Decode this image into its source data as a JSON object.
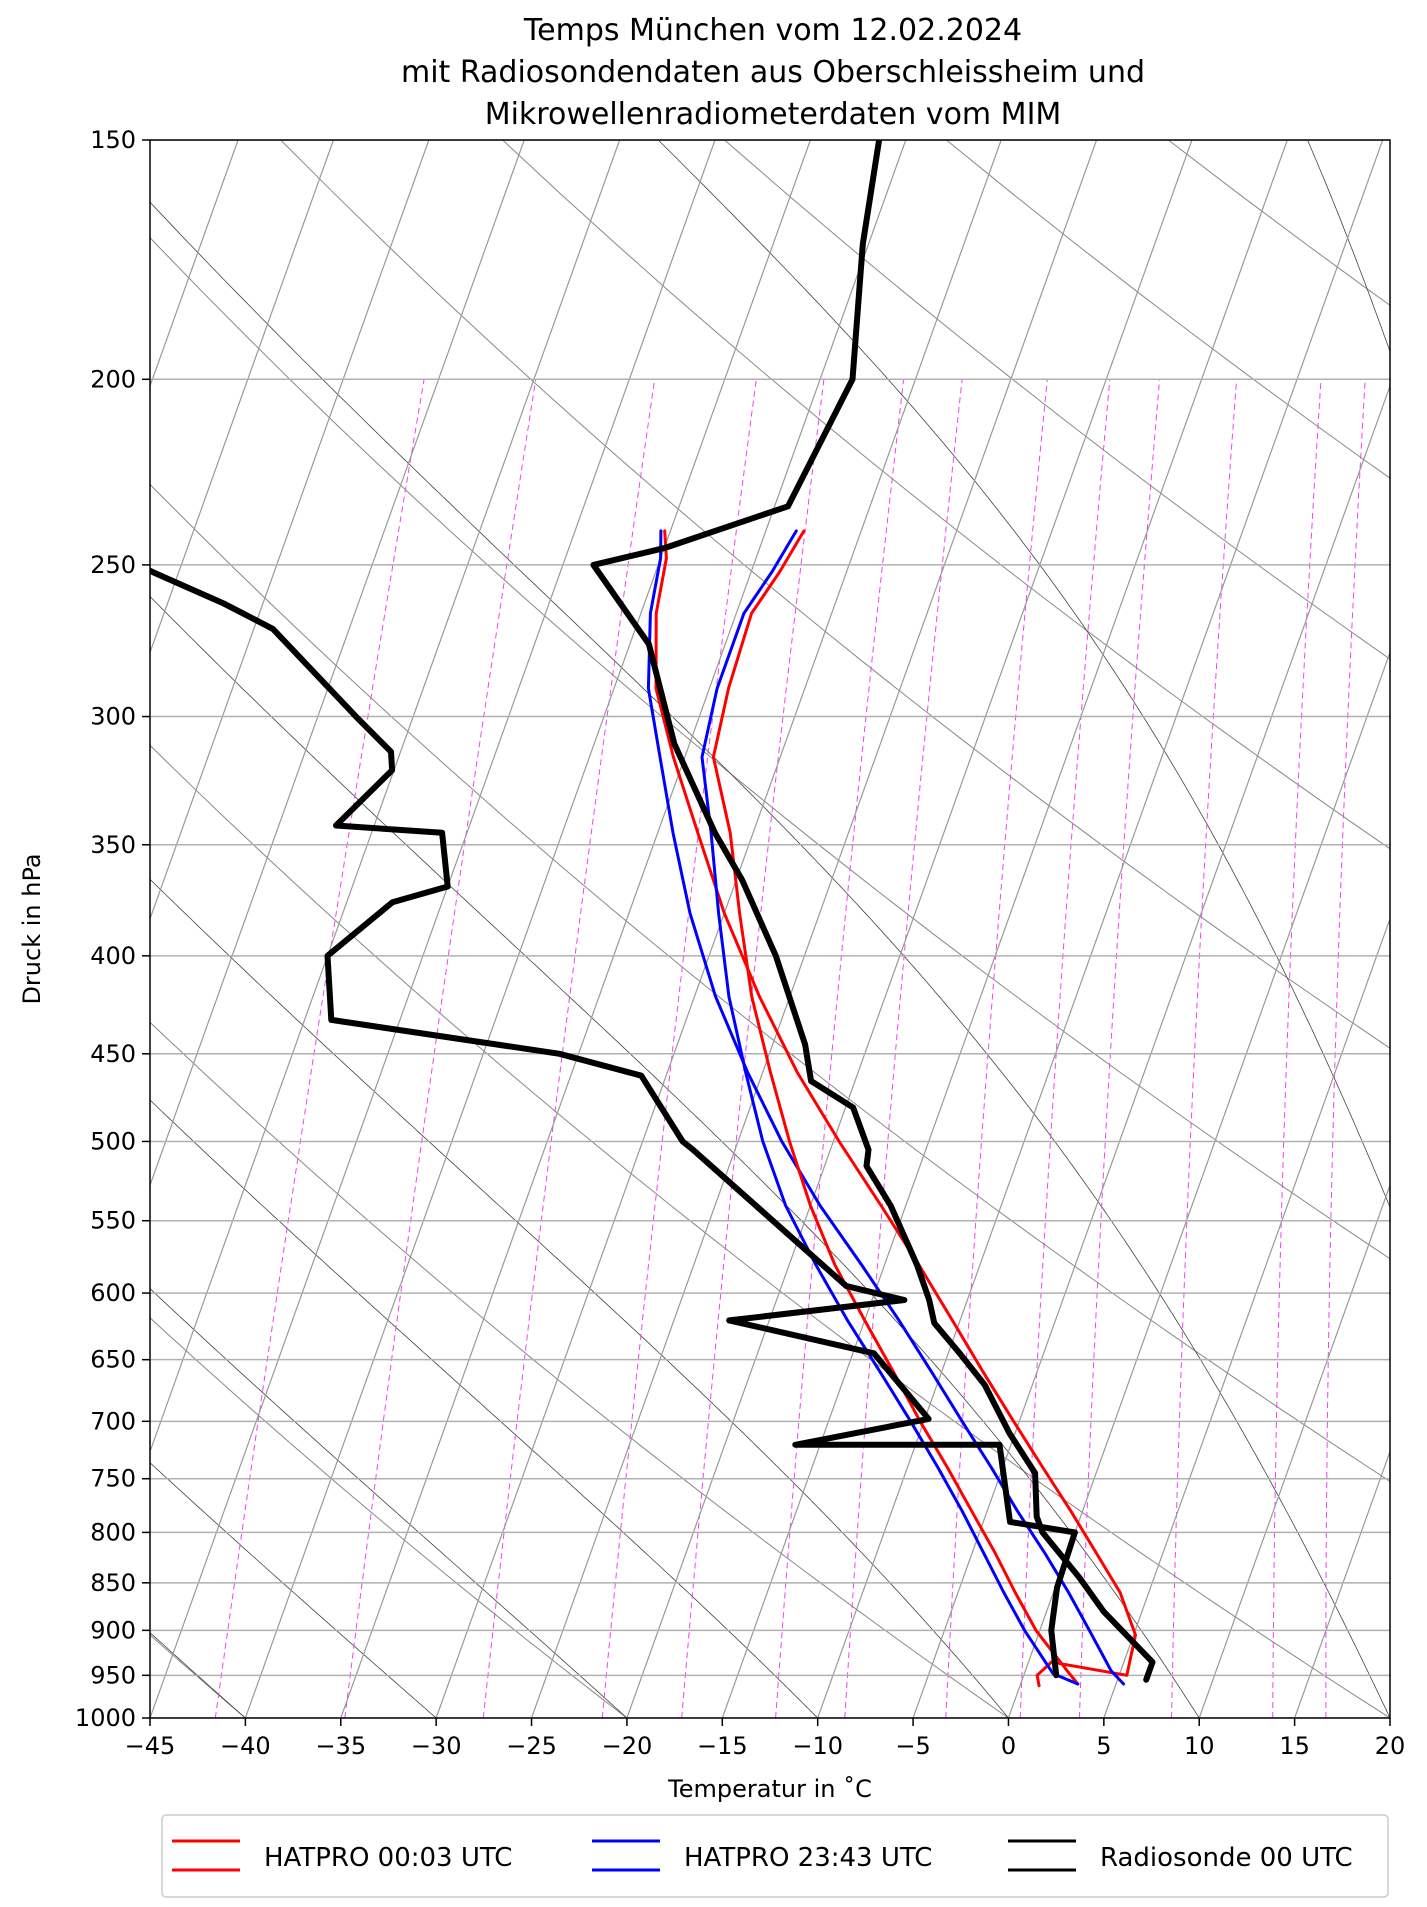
{
  "chart_data": {
    "type": "line",
    "title_lines": [
      "Temps München vom 12.02.2024",
      "mit Radiosondendaten aus Oberschleissheim und",
      "Mikrowellenradiometerdaten vom MIM"
    ],
    "xlabel": "Temperatur in  ˚C",
    "ylabel": "Druck in hPa",
    "xlim": [
      -45,
      20
    ],
    "ylim": [
      1000,
      150
    ],
    "y_scale": "log",
    "skew": true,
    "grid": true,
    "x_ticks": [
      -45,
      -40,
      -35,
      -30,
      -25,
      -20,
      -15,
      -10,
      -5,
      0,
      5,
      10,
      15,
      20
    ],
    "y_ticks": [
      150,
      200,
      250,
      300,
      350,
      400,
      450,
      500,
      550,
      600,
      650,
      700,
      750,
      800,
      850,
      900,
      950,
      1000
    ],
    "legend_position": "bottom",
    "series": [
      {
        "name": "HATPRO 00:03 UTC",
        "color": "#ff0000",
        "points": [
          [
            1.0,
            962
          ],
          [
            0.7,
            950
          ],
          [
            1.2,
            935
          ],
          [
            5.4,
            950
          ],
          [
            5.1,
            905
          ],
          [
            3.5,
            860
          ],
          [
            1.5,
            820
          ],
          [
            -0.6,
            780
          ],
          [
            -2.9,
            740
          ],
          [
            -5.3,
            700
          ],
          [
            -7.8,
            660
          ],
          [
            -10.4,
            620
          ],
          [
            -13.2,
            580
          ],
          [
            -16.3,
            540
          ],
          [
            -19.7,
            500
          ],
          [
            -23.2,
            460
          ],
          [
            -26.6,
            420
          ],
          [
            -30.0,
            380
          ],
          [
            -32.9,
            345
          ],
          [
            -35.6,
            315
          ],
          [
            -37.8,
            290
          ],
          [
            -39.2,
            265
          ],
          [
            -39.7,
            248
          ],
          [
            -40.3,
            240
          ]
        ]
      },
      {
        "name": "HATPRO 23:43 UTC",
        "color": "#0000ff",
        "points": [
          [
            5.4,
            960
          ],
          [
            4.5,
            945
          ],
          [
            2.6,
            900
          ],
          [
            0.8,
            860
          ],
          [
            -1.2,
            820
          ],
          [
            -3.4,
            780
          ],
          [
            -5.6,
            740
          ],
          [
            -8.0,
            700
          ],
          [
            -10.5,
            660
          ],
          [
            -13.2,
            620
          ],
          [
            -16.2,
            580
          ],
          [
            -19.5,
            540
          ],
          [
            -22.7,
            500
          ],
          [
            -25.8,
            460
          ],
          [
            -28.9,
            420
          ],
          [
            -31.8,
            380
          ],
          [
            -34.2,
            345
          ],
          [
            -36.3,
            315
          ],
          [
            -38.2,
            290
          ],
          [
            -39.5,
            265
          ],
          [
            -40.0,
            248
          ],
          [
            -40.5,
            240
          ]
        ]
      },
      {
        "name": "",
        "color": "#ff0000",
        "points": [
          [
            3.0,
            960
          ],
          [
            2.2,
            945
          ],
          [
            -0.2,
            900
          ],
          [
            -2.0,
            860
          ],
          [
            -3.8,
            820
          ],
          [
            -5.8,
            780
          ],
          [
            -7.9,
            740
          ],
          [
            -10.2,
            700
          ],
          [
            -12.5,
            660
          ],
          [
            -15.0,
            620
          ],
          [
            -17.6,
            580
          ],
          [
            -20.0,
            540
          ],
          [
            -22.3,
            500
          ],
          [
            -24.6,
            460
          ],
          [
            -27.0,
            420
          ],
          [
            -29.2,
            380
          ],
          [
            -31.2,
            345
          ],
          [
            -33.5,
            315
          ],
          [
            -34.0,
            290
          ],
          [
            -34.2,
            265
          ],
          [
            -33.5,
            252
          ],
          [
            -33.0,
            240
          ]
        ]
      },
      {
        "name": "",
        "color": "#0000ff",
        "points": [
          [
            3.0,
            960
          ],
          [
            1.5,
            948
          ],
          [
            -0.8,
            900
          ],
          [
            -2.6,
            860
          ],
          [
            -4.4,
            820
          ],
          [
            -6.3,
            780
          ],
          [
            -8.4,
            740
          ],
          [
            -10.7,
            700
          ],
          [
            -13.2,
            660
          ],
          [
            -15.9,
            620
          ],
          [
            -18.6,
            580
          ],
          [
            -21.3,
            540
          ],
          [
            -23.7,
            500
          ],
          [
            -25.9,
            460
          ],
          [
            -28.2,
            420
          ],
          [
            -30.3,
            380
          ],
          [
            -32.2,
            345
          ],
          [
            -34.1,
            315
          ],
          [
            -34.6,
            290
          ],
          [
            -34.6,
            265
          ],
          [
            -33.9,
            252
          ],
          [
            -33.4,
            240
          ]
        ]
      },
      {
        "name": "Radiosonde 00 UTC",
        "color": "#000000",
        "points": [
          [
            6.5,
            955
          ],
          [
            6.5,
            935
          ],
          [
            3.0,
            880
          ],
          [
            1.1,
            845
          ],
          [
            -1.7,
            800
          ],
          [
            -2.3,
            785
          ],
          [
            -3.2,
            745
          ],
          [
            -5.3,
            710
          ],
          [
            -7.5,
            670
          ],
          [
            -9.4,
            645
          ],
          [
            -11.3,
            622
          ],
          [
            -12.0,
            605
          ],
          [
            -13.3,
            580
          ],
          [
            -15.8,
            540
          ],
          [
            -17.8,
            515
          ],
          [
            -18.0,
            505
          ],
          [
            -19.6,
            480
          ],
          [
            -22.3,
            465
          ],
          [
            -23.3,
            445
          ],
          [
            -26.5,
            400
          ],
          [
            -29.7,
            365
          ],
          [
            -32.0,
            345
          ],
          [
            -35.8,
            310
          ],
          [
            -39.0,
            275
          ],
          [
            -43.4,
            250
          ],
          [
            -40.0,
            245
          ],
          [
            -34.3,
            233
          ],
          [
            -33.3,
            200
          ],
          [
            -35.3,
            170
          ],
          [
            -36.4,
            150
          ]
        ]
      },
      {
        "name": "",
        "color": "#000000",
        "points": [
          [
            1.7,
            950
          ],
          [
            0.6,
            900
          ],
          [
            0.1,
            855
          ],
          [
            0.0,
            800
          ],
          [
            -3.6,
            790
          ],
          [
            -5.6,
            720
          ],
          [
            -16.3,
            720
          ],
          [
            -9.8,
            698
          ],
          [
            -13.9,
            645
          ],
          [
            -22.1,
            620
          ],
          [
            -13.3,
            605
          ],
          [
            -16.6,
            595
          ],
          [
            -27.2,
            505
          ],
          [
            -27.9,
            500
          ],
          [
            -31.3,
            462
          ],
          [
            -36.0,
            450
          ],
          [
            -48.6,
            432
          ],
          [
            -50.0,
            400
          ],
          [
            -47.6,
            375
          ],
          [
            -45.0,
            368
          ],
          [
            -46.3,
            345
          ],
          [
            -52.0,
            342
          ],
          [
            -50.1,
            320
          ],
          [
            -50.5,
            313
          ],
          [
            -53.0,
            300
          ],
          [
            -59.0,
            270
          ],
          [
            -62.0,
            262
          ],
          [
            -66.0,
            253
          ],
          [
            -70.0,
            244
          ]
        ]
      }
    ]
  }
}
